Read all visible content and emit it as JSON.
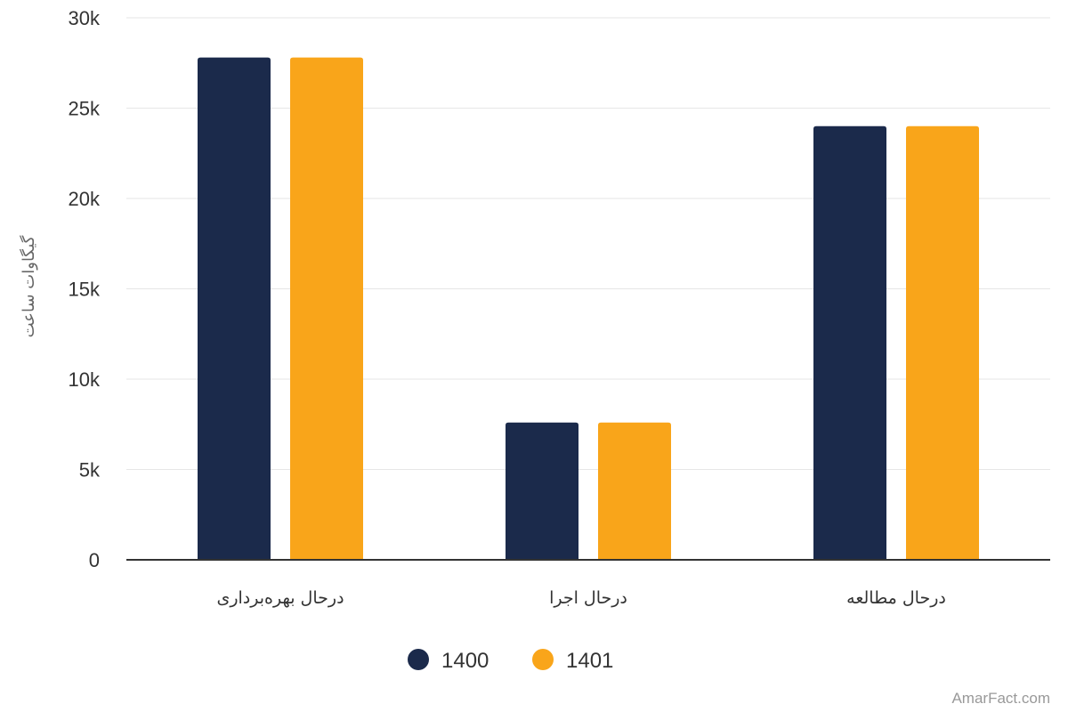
{
  "chart_data": {
    "type": "bar",
    "categories": [
      "درحال بهره‌برداری",
      "درحال اجرا",
      "درحال مطالعه"
    ],
    "series": [
      {
        "name": "1400",
        "color": "#1b2a4b",
        "values": [
          27800,
          7600,
          24000
        ]
      },
      {
        "name": "1401",
        "color": "#f9a51a",
        "values": [
          27800,
          7600,
          24000
        ]
      }
    ],
    "ylabel": "گیگاوات ساعت",
    "ylim": [
      0,
      30000
    ],
    "yticks": [
      {
        "value": 0,
        "label": "0"
      },
      {
        "value": 5000,
        "label": "5k"
      },
      {
        "value": 10000,
        "label": "10k"
      },
      {
        "value": 15000,
        "label": "15k"
      },
      {
        "value": 20000,
        "label": "20k"
      },
      {
        "value": 25000,
        "label": "25k"
      },
      {
        "value": 30000,
        "label": "30k"
      }
    ],
    "grid": true,
    "legend_position": "bottom-center"
  },
  "credit": "AmarFact.com"
}
